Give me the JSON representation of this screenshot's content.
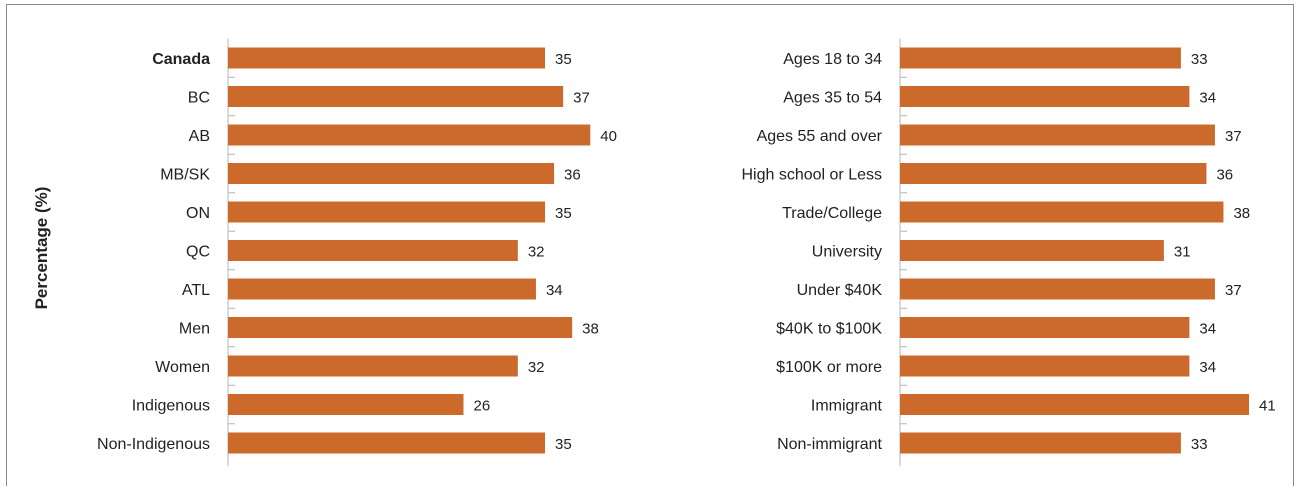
{
  "chart_data": {
    "ylabel": "Percentage (%)",
    "bar_color": "#CC6A2C",
    "bold_categories": [
      "Canada"
    ],
    "charts": [
      {
        "type": "bar",
        "orientation": "horizontal",
        "categories": [
          "Canada",
          "BC",
          "AB",
          "MB/SK",
          "ON",
          "QC",
          "ATL",
          "Men",
          "Women",
          "Indigenous",
          "Non-Indigenous"
        ],
        "values": [
          35,
          37,
          40,
          36,
          35,
          32,
          34,
          38,
          32,
          26,
          35
        ],
        "data_labels": [
          "35",
          "37",
          "40",
          "36",
          "35",
          "32",
          "34",
          "38",
          "32",
          "26",
          "35"
        ],
        "xlim": [
          0,
          41
        ]
      },
      {
        "type": "bar",
        "orientation": "horizontal",
        "categories": [
          "Ages 18 to 34",
          "Ages 35 to 54",
          "Ages 55 and over",
          "High school or Less",
          "Trade/College",
          "University",
          "Under $40K",
          "$40K to $100K",
          "$100K or more",
          "Immigrant",
          "Non-immigrant"
        ],
        "values": [
          33,
          34,
          37,
          36,
          38,
          31,
          37,
          34,
          34,
          41,
          33
        ],
        "data_labels": [
          "33",
          "34",
          "37",
          "36",
          "38",
          "31",
          "37",
          "34",
          "34",
          "41",
          "33"
        ],
        "xlim": [
          0,
          41
        ]
      }
    ]
  }
}
